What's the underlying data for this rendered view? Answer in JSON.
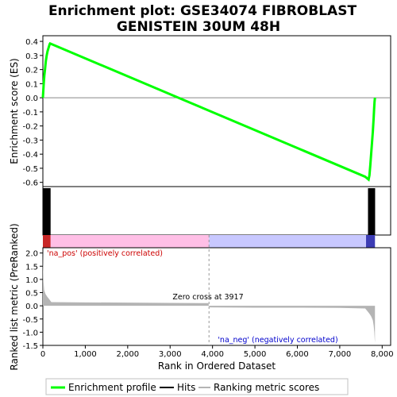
{
  "title_line1": "Enrichment plot: GSE34074 FIBROBLAST",
  "title_line2": "GENISTEIN 30UM 48H",
  "es_ylabel": "Enrichment score (ES)",
  "metric_ylabel": "Ranked list metric (PreRanked)",
  "xlabel": "Rank in Ordered Dataset",
  "pos_label": "'na_pos' (positively correlated)",
  "neg_label": "'na_neg' (negatively correlated)",
  "zero_cross_label": "Zero cross at 3917",
  "legend": {
    "enrichment_profile": "Enrichment profile",
    "hits": "Hits",
    "ranking_metric": "Ranking metric scores"
  },
  "colors": {
    "enrichment_line": "#00ff00",
    "hits": "#000000",
    "metric_fill": "#b4b4b4",
    "pos_bar": "#ffbfe6",
    "neg_bar": "#c8c8ff",
    "pos_text": "#cc0000",
    "neg_text": "#0000cc"
  },
  "chart_data": {
    "type": "line",
    "x_ticks": [
      0,
      1000,
      2000,
      3000,
      4000,
      5000,
      6000,
      7000,
      8000
    ],
    "x_tick_labels": [
      "0",
      "1,000",
      "2,000",
      "3,000",
      "4,000",
      "5,000",
      "6,000",
      "7,000",
      "8,000"
    ],
    "xlim": [
      0,
      8200
    ],
    "es_ylim": [
      -0.63,
      0.44
    ],
    "es_ticks": [
      0.4,
      0.3,
      0.2,
      0.1,
      0.0,
      -0.1,
      -0.2,
      -0.3,
      -0.4,
      -0.5,
      -0.6
    ],
    "es_tick_labels": [
      "0.4",
      "0.3",
      "0.2",
      "0.1",
      "0.0",
      "-0.1",
      "-0.2",
      "-0.3",
      "-0.4",
      "-0.5",
      "-0.6"
    ],
    "metric_ylim": [
      -1.5,
      2.2
    ],
    "metric_ticks": [
      2.0,
      1.5,
      1.0,
      0.5,
      0.0,
      -0.5,
      -1.0,
      -1.5
    ],
    "metric_tick_labels": [
      "2.0",
      "1.5",
      "1.0",
      "0.5",
      "0.0",
      "-0.5",
      "-1.0",
      "-1.5"
    ],
    "zero_cross": 3917,
    "n_genes": 7830,
    "enrichment_profile": {
      "x": [
        0,
        10,
        20,
        35,
        50,
        70,
        90,
        110,
        130,
        150,
        160,
        170,
        7600,
        7680,
        7700,
        7720,
        7740,
        7760,
        7780,
        7800,
        7810,
        7820,
        7830
      ],
      "y": [
        0.0,
        0.05,
        0.1,
        0.16,
        0.2,
        0.26,
        0.3,
        0.33,
        0.35,
        0.37,
        0.38,
        0.385,
        -0.56,
        -0.58,
        -0.55,
        -0.48,
        -0.4,
        -0.32,
        -0.24,
        -0.14,
        -0.08,
        -0.03,
        0.0
      ]
    },
    "hits": [
      5,
      12,
      20,
      28,
      36,
      45,
      55,
      65,
      75,
      85,
      100,
      115,
      130,
      150,
      168,
      7680,
      7690,
      7700,
      7710,
      7720,
      7730,
      7740,
      7750,
      7760,
      7770,
      7780,
      7790,
      7800,
      7810,
      7820
    ],
    "ranking_metric": {
      "x": [
        0,
        5,
        15,
        30,
        60,
        100,
        150,
        200,
        1000,
        2000,
        3000,
        3900,
        3917,
        3930,
        5000,
        6000,
        7000,
        7600,
        7650,
        7700,
        7740,
        7780,
        7800,
        7815,
        7825,
        7830
      ],
      "y": [
        2.2,
        1.6,
        0.9,
        0.6,
        0.45,
        0.35,
        0.25,
        0.14,
        0.13,
        0.12,
        0.11,
        0.1,
        0.0,
        -0.06,
        -0.07,
        -0.07,
        -0.08,
        -0.1,
        -0.2,
        -0.3,
        -0.4,
        -0.55,
        -0.75,
        -1.0,
        -1.3,
        -1.4
      ]
    }
  }
}
